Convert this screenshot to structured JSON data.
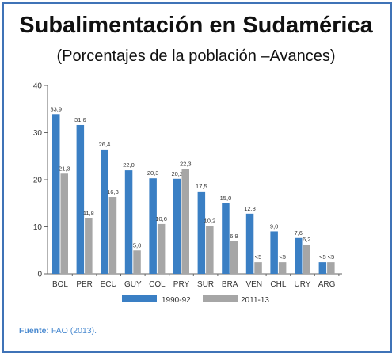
{
  "title": "Subalimentación en Sudamérica",
  "subtitle": "(Porcentajes de la población –Avances)",
  "source": {
    "label": "Fuente:",
    "text": "FAO (2013)."
  },
  "chart_data": {
    "type": "bar",
    "categories": [
      "BOL",
      "PER",
      "ECU",
      "GUY",
      "COL",
      "PRY",
      "SUR",
      "BRA",
      "VEN",
      "CHL",
      "URY",
      "ARG"
    ],
    "series": [
      {
        "name": "1990-92",
        "color": "#3a7fc4",
        "values": [
          33.9,
          31.6,
          26.4,
          22.0,
          20.3,
          20.2,
          17.5,
          15.0,
          12.8,
          9.0,
          7.6,
          2.5
        ],
        "labels": [
          "33,9",
          "31,6",
          "26,4",
          "22,0",
          "20,3",
          "20,2",
          "17,5",
          "15,0",
          "12,8",
          "9,0",
          "7,6",
          "<5"
        ]
      },
      {
        "name": "2011-13",
        "color": "#a6a6a6",
        "values": [
          21.3,
          11.8,
          16.3,
          5.0,
          10.6,
          22.3,
          10.2,
          6.9,
          2.5,
          2.5,
          6.2,
          2.5
        ],
        "labels": [
          "21,3",
          "11,8",
          "16,3",
          "5,0",
          "10,6",
          "22,3",
          "10,2",
          "6,9",
          "<5",
          "<5",
          "6,2",
          "<5"
        ]
      }
    ],
    "yticks": [
      "0",
      "10",
      "20",
      "30",
      "40"
    ],
    "ylim": [
      0,
      40
    ],
    "legend_position": "bottom",
    "grid": false
  }
}
